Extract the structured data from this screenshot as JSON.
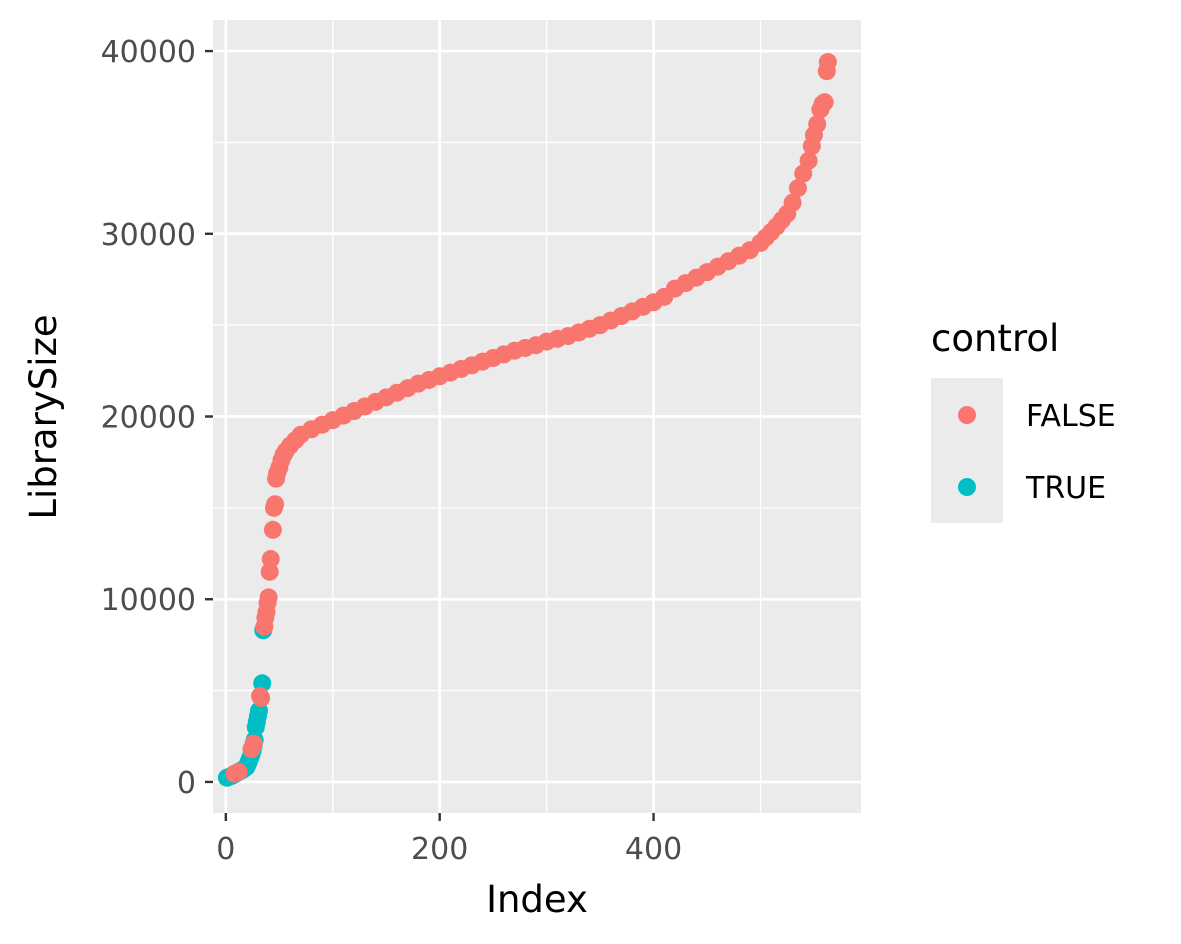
{
  "chart_data": {
    "type": "scatter",
    "xlabel": "Index",
    "ylabel": "LibrarySize",
    "xlim": [
      -12,
      594
    ],
    "ylim": [
      -1700,
      41700
    ],
    "x_ticks": [
      0,
      200,
      400
    ],
    "x_tick_labels": [
      "0",
      "200",
      "400"
    ],
    "x_minor_ticks": [
      100,
      300,
      500
    ],
    "y_ticks": [
      0,
      10000,
      20000,
      30000,
      40000
    ],
    "y_tick_labels": [
      "0",
      "10000",
      "20000",
      "30000",
      "40000"
    ],
    "y_minor_ticks": [
      5000,
      15000,
      25000,
      35000
    ],
    "grid": true,
    "legend": {
      "title": "control",
      "position": "right",
      "entries": [
        {
          "label": "FALSE",
          "color": "#F8766D"
        },
        {
          "label": "TRUE",
          "color": "#00BFC4"
        }
      ]
    },
    "colors": {
      "FALSE": "#F8766D",
      "TRUE": "#00BFC4",
      "panel": "#EBEBEB",
      "grid": "#FFFFFF"
    },
    "series": [
      {
        "name": "TRUE",
        "color": "#00BFC4",
        "points": [
          [
            1,
            230
          ],
          [
            3,
            280
          ],
          [
            5,
            320
          ],
          [
            7,
            380
          ],
          [
            9,
            450
          ],
          [
            11,
            520
          ],
          [
            13,
            580
          ],
          [
            15,
            640
          ],
          [
            17,
            720
          ],
          [
            19,
            800
          ],
          [
            20,
            900
          ],
          [
            21,
            1050
          ],
          [
            22,
            1200
          ],
          [
            23,
            1350
          ],
          [
            24,
            1500
          ],
          [
            25,
            1700
          ],
          [
            26,
            2000
          ],
          [
            27,
            2300
          ],
          [
            28,
            3000
          ],
          [
            29,
            3300
          ],
          [
            30,
            3600
          ],
          [
            31,
            3900
          ],
          [
            34,
            5400
          ],
          [
            35,
            8300
          ]
        ]
      },
      {
        "name": "FALSE",
        "color": "#F8766D",
        "points": [
          [
            8,
            450
          ],
          [
            12,
            560
          ],
          [
            24,
            1800
          ],
          [
            26,
            2100
          ],
          [
            32,
            4700
          ],
          [
            33,
            4600
          ],
          [
            36,
            8500
          ],
          [
            37,
            9000
          ],
          [
            38,
            9300
          ],
          [
            39,
            9800
          ],
          [
            40,
            10100
          ],
          [
            41,
            11500
          ],
          [
            42,
            12200
          ],
          [
            44,
            13800
          ],
          [
            45,
            15000
          ],
          [
            46,
            15200
          ],
          [
            47,
            16600
          ],
          [
            48,
            16900
          ],
          [
            50,
            17200
          ],
          [
            52,
            17600
          ],
          [
            54,
            17900
          ],
          [
            56,
            18100
          ],
          [
            60,
            18400
          ],
          [
            65,
            18700
          ],
          [
            70,
            19000
          ],
          [
            80,
            19300
          ],
          [
            90,
            19550
          ],
          [
            100,
            19800
          ],
          [
            110,
            20050
          ],
          [
            120,
            20300
          ],
          [
            130,
            20550
          ],
          [
            140,
            20800
          ],
          [
            150,
            21050
          ],
          [
            160,
            21300
          ],
          [
            170,
            21550
          ],
          [
            180,
            21800
          ],
          [
            190,
            22000
          ],
          [
            200,
            22200
          ],
          [
            210,
            22400
          ],
          [
            220,
            22600
          ],
          [
            230,
            22800
          ],
          [
            240,
            23000
          ],
          [
            250,
            23200
          ],
          [
            260,
            23400
          ],
          [
            270,
            23600
          ],
          [
            280,
            23750
          ],
          [
            290,
            23900
          ],
          [
            300,
            24100
          ],
          [
            310,
            24250
          ],
          [
            320,
            24400
          ],
          [
            330,
            24600
          ],
          [
            340,
            24800
          ],
          [
            350,
            25000
          ],
          [
            360,
            25250
          ],
          [
            370,
            25500
          ],
          [
            380,
            25750
          ],
          [
            390,
            26000
          ],
          [
            400,
            26250
          ],
          [
            410,
            26550
          ],
          [
            420,
            27000
          ],
          [
            430,
            27300
          ],
          [
            440,
            27600
          ],
          [
            450,
            27900
          ],
          [
            460,
            28200
          ],
          [
            470,
            28500
          ],
          [
            480,
            28800
          ],
          [
            490,
            29100
          ],
          [
            500,
            29500
          ],
          [
            505,
            29800
          ],
          [
            510,
            30100
          ],
          [
            515,
            30400
          ],
          [
            520,
            30750
          ],
          [
            525,
            31100
          ],
          [
            530,
            31700
          ],
          [
            535,
            32500
          ],
          [
            540,
            33300
          ],
          [
            545,
            34000
          ],
          [
            548,
            34800
          ],
          [
            550,
            35400
          ],
          [
            553,
            36000
          ],
          [
            556,
            36800
          ],
          [
            558,
            37100
          ],
          [
            560,
            37200
          ],
          [
            562,
            38900
          ],
          [
            563,
            39400
          ]
        ]
      }
    ]
  }
}
